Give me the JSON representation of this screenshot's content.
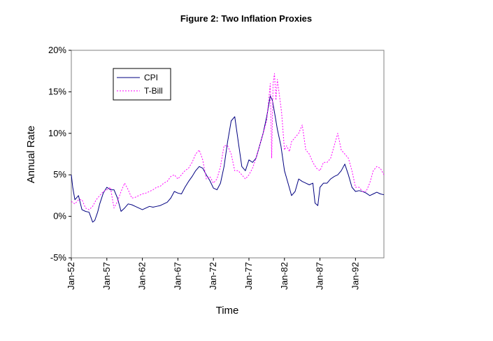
{
  "chart_data": {
    "type": "line",
    "title": "Figure 2: Two Inflation Proxies",
    "xlabel": "Time",
    "ylabel": "Annual Rate",
    "ylim": [
      -0.05,
      0.2
    ],
    "y_ticks": [
      -0.05,
      0.0,
      0.05,
      0.1,
      0.15,
      0.2
    ],
    "y_tick_labels": [
      "-5%",
      "0%",
      "5%",
      "10%",
      "15%",
      "20%"
    ],
    "x_range": [
      1952.0,
      1996.0
    ],
    "x_ticks": [
      1952,
      1957,
      1962,
      1967,
      1972,
      1977,
      1982,
      1987,
      1992
    ],
    "x_tick_labels": [
      "Jan-52",
      "Jan-57",
      "Jan-62",
      "Jan-67",
      "Jan-72",
      "Jan-77",
      "Jan-82",
      "Jan-87",
      "Jan-92"
    ],
    "grid": false,
    "legend_position": "top-left",
    "series": [
      {
        "name": "CPI",
        "color": "#000080",
        "style": "solid",
        "x": [
          1952.0,
          1952.2,
          1952.5,
          1953.0,
          1953.5,
          1954.0,
          1954.5,
          1955.0,
          1955.3,
          1955.7,
          1956.0,
          1956.5,
          1957.0,
          1957.5,
          1958.0,
          1958.5,
          1959.0,
          1959.5,
          1960.0,
          1960.5,
          1961.0,
          1961.5,
          1962.0,
          1962.5,
          1963.0,
          1963.5,
          1964.0,
          1964.5,
          1965.0,
          1965.5,
          1966.0,
          1966.5,
          1967.0,
          1967.5,
          1968.0,
          1968.5,
          1969.0,
          1969.5,
          1970.0,
          1970.5,
          1971.0,
          1971.5,
          1972.0,
          1972.5,
          1973.0,
          1973.5,
          1974.0,
          1974.5,
          1975.0,
          1975.5,
          1976.0,
          1976.5,
          1977.0,
          1977.5,
          1978.0,
          1978.5,
          1979.0,
          1979.5,
          1980.0,
          1980.3,
          1980.7,
          1981.0,
          1981.5,
          1982.0,
          1982.5,
          1983.0,
          1983.5,
          1984.0,
          1984.5,
          1985.0,
          1985.5,
          1986.0,
          1986.3,
          1986.7,
          1987.0,
          1987.5,
          1988.0,
          1988.5,
          1989.0,
          1989.5,
          1990.0,
          1990.5,
          1991.0,
          1991.5,
          1992.0,
          1992.5,
          1993.0,
          1993.5,
          1994.0,
          1994.5,
          1995.0,
          1995.5,
          1996.0
        ],
        "y": [
          0.05,
          0.035,
          0.02,
          0.025,
          0.008,
          0.006,
          0.005,
          -0.007,
          -0.005,
          0.005,
          0.015,
          0.028,
          0.035,
          0.032,
          0.032,
          0.022,
          0.006,
          0.01,
          0.015,
          0.014,
          0.012,
          0.01,
          0.008,
          0.01,
          0.012,
          0.011,
          0.012,
          0.013,
          0.015,
          0.017,
          0.022,
          0.03,
          0.028,
          0.027,
          0.035,
          0.042,
          0.048,
          0.055,
          0.06,
          0.058,
          0.05,
          0.043,
          0.034,
          0.032,
          0.04,
          0.06,
          0.09,
          0.115,
          0.12,
          0.09,
          0.06,
          0.055,
          0.068,
          0.065,
          0.07,
          0.085,
          0.1,
          0.12,
          0.145,
          0.14,
          0.12,
          0.105,
          0.085,
          0.055,
          0.04,
          0.025,
          0.03,
          0.045,
          0.042,
          0.04,
          0.038,
          0.04,
          0.016,
          0.013,
          0.035,
          0.04,
          0.04,
          0.045,
          0.048,
          0.05,
          0.055,
          0.063,
          0.05,
          0.035,
          0.03,
          0.031,
          0.03,
          0.028,
          0.025,
          0.027,
          0.029,
          0.027,
          0.026
        ]
      },
      {
        "name": "T-Bill",
        "color": "#ff00ff",
        "style": "dotted",
        "x": [
          1952.0,
          1952.5,
          1953.0,
          1953.5,
          1954.0,
          1954.5,
          1955.0,
          1955.5,
          1956.0,
          1956.5,
          1957.0,
          1957.5,
          1958.0,
          1958.5,
          1959.0,
          1959.5,
          1960.0,
          1960.5,
          1961.0,
          1961.5,
          1962.0,
          1962.5,
          1963.0,
          1963.5,
          1964.0,
          1964.5,
          1965.0,
          1965.5,
          1966.0,
          1966.5,
          1967.0,
          1967.5,
          1968.0,
          1968.5,
          1969.0,
          1969.5,
          1970.0,
          1970.5,
          1971.0,
          1971.5,
          1972.0,
          1972.5,
          1973.0,
          1973.5,
          1974.0,
          1974.5,
          1975.0,
          1975.5,
          1976.0,
          1976.5,
          1977.0,
          1977.5,
          1978.0,
          1978.5,
          1979.0,
          1979.5,
          1980.0,
          1980.2,
          1980.4,
          1980.6,
          1980.8,
          1981.0,
          1981.3,
          1981.6,
          1982.0,
          1982.3,
          1982.7,
          1983.0,
          1983.5,
          1984.0,
          1984.5,
          1985.0,
          1985.5,
          1986.0,
          1986.5,
          1987.0,
          1987.5,
          1988.0,
          1988.5,
          1989.0,
          1989.5,
          1990.0,
          1990.5,
          1991.0,
          1991.5,
          1992.0,
          1992.5,
          1993.0,
          1993.5,
          1994.0,
          1994.5,
          1995.0,
          1995.5,
          1996.0
        ],
        "y": [
          0.018,
          0.015,
          0.02,
          0.02,
          0.01,
          0.008,
          0.012,
          0.02,
          0.025,
          0.03,
          0.032,
          0.035,
          0.01,
          0.018,
          0.03,
          0.04,
          0.032,
          0.022,
          0.023,
          0.025,
          0.027,
          0.028,
          0.03,
          0.032,
          0.035,
          0.036,
          0.04,
          0.042,
          0.048,
          0.05,
          0.045,
          0.05,
          0.055,
          0.058,
          0.065,
          0.075,
          0.08,
          0.068,
          0.045,
          0.048,
          0.04,
          0.045,
          0.06,
          0.085,
          0.085,
          0.075,
          0.055,
          0.055,
          0.05,
          0.045,
          0.05,
          0.058,
          0.07,
          0.085,
          0.1,
          0.115,
          0.16,
          0.07,
          0.16,
          0.172,
          0.14,
          0.165,
          0.145,
          0.125,
          0.08,
          0.085,
          0.078,
          0.09,
          0.095,
          0.1,
          0.11,
          0.08,
          0.075,
          0.065,
          0.058,
          0.055,
          0.065,
          0.065,
          0.07,
          0.085,
          0.1,
          0.08,
          0.075,
          0.07,
          0.055,
          0.035,
          0.035,
          0.03,
          0.03,
          0.04,
          0.055,
          0.06,
          0.058,
          0.05
        ]
      }
    ]
  }
}
